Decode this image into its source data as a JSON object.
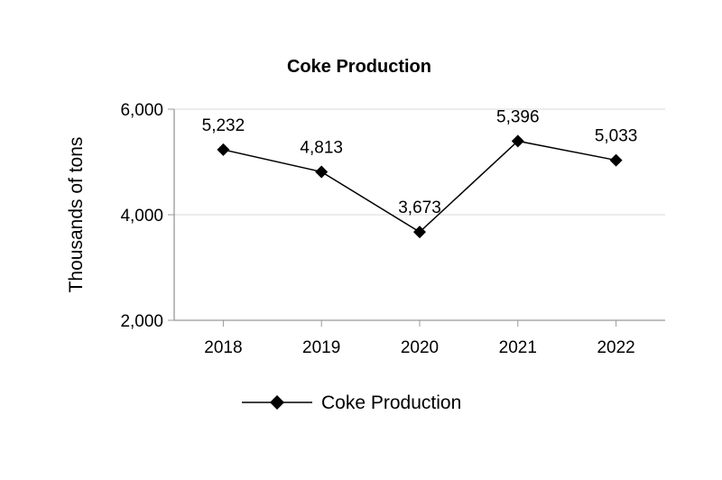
{
  "chart_data": {
    "type": "line",
    "title": "Coke Production",
    "xlabel": "",
    "ylabel": "Thousands of tons",
    "categories": [
      "2018",
      "2019",
      "2020",
      "2021",
      "2022"
    ],
    "series": [
      {
        "name": "Coke Production",
        "values": [
          5232,
          4813,
          3673,
          5396,
          5033
        ],
        "data_labels": [
          "5,232",
          "4,813",
          "3,673",
          "5,396",
          "5,033"
        ],
        "color": "#000000",
        "marker": "diamond"
      }
    ],
    "ylim": [
      2000,
      6000
    ],
    "yticks": [
      2000,
      4000,
      6000
    ],
    "ytick_labels": [
      "2,000",
      "4,000",
      "6,000"
    ],
    "grid": true,
    "grid_color": "#d9d9d9",
    "axis_color": "#999999",
    "legend": {
      "position": "bottom",
      "label": "Coke Production"
    }
  }
}
